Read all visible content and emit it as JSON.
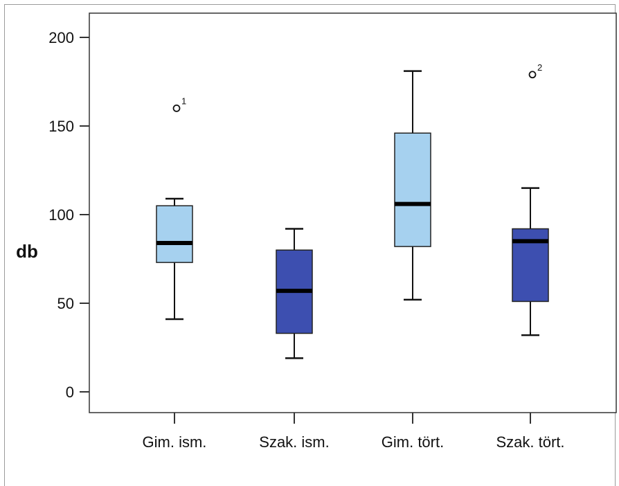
{
  "chart_data": {
    "type": "boxplot",
    "title": "",
    "xlabel": "",
    "ylabel": "db",
    "ylim": [
      -10,
      210
    ],
    "yticks": [
      0,
      50,
      100,
      150,
      200
    ],
    "categories": [
      "Gim. ism.",
      "Szak. ism.",
      "Gim. tört.",
      "Szak. tört."
    ],
    "boxes": [
      {
        "category": "Gim. ism.",
        "whisker_low": 41,
        "q1": 73,
        "median": 84,
        "q3": 105,
        "whisker_high": 109,
        "color": "#a6d1ef",
        "outliers": [
          {
            "value": 160,
            "label": "1"
          }
        ]
      },
      {
        "category": "Szak. ism.",
        "whisker_low": 19,
        "q1": 33,
        "median": 57,
        "q3": 80,
        "whisker_high": 92,
        "color": "#3d4fb0",
        "outliers": []
      },
      {
        "category": "Gim. tört.",
        "whisker_low": 52,
        "q1": 82,
        "median": 106,
        "q3": 146,
        "whisker_high": 181,
        "color": "#a6d1ef",
        "outliers": []
      },
      {
        "category": "Szak. tört.",
        "whisker_low": 32,
        "q1": 51,
        "median": 85,
        "q3": 92,
        "whisker_high": 115,
        "color": "#3d4fb0",
        "outliers": [
          {
            "value": 179,
            "label": "2"
          }
        ]
      }
    ],
    "grid": false,
    "legend": "none"
  }
}
